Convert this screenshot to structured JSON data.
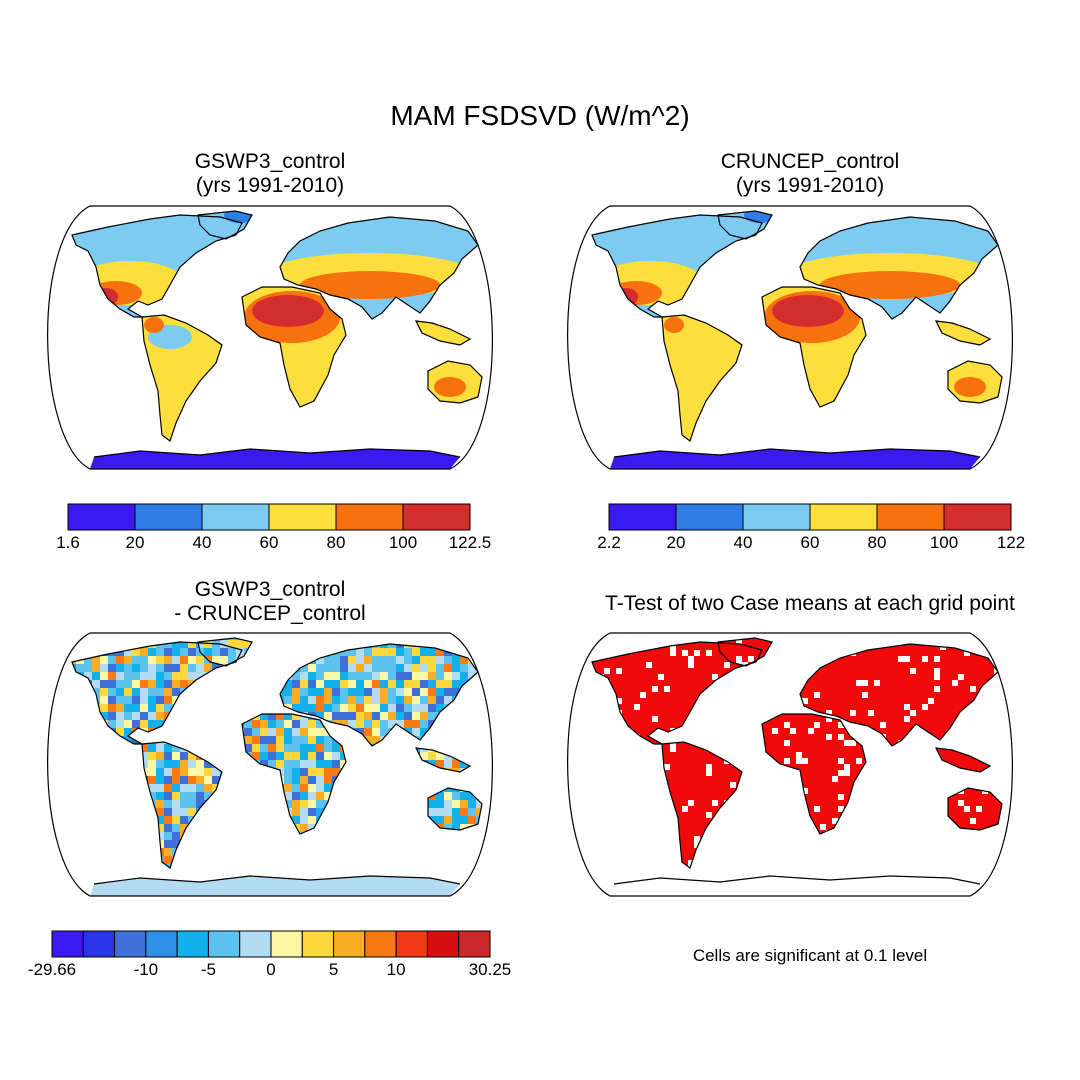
{
  "title": "MAM FSDSVD (W/m^2)",
  "panels": {
    "gswp3": {
      "title_line1": "GSWP3_control",
      "title_line2": "(yrs 1991-2010)"
    },
    "cruncep": {
      "title_line1": "CRUNCEP_control",
      "title_line2": "(yrs 1991-2010)"
    },
    "difference": {
      "title_line1": "GSWP3_control",
      "title_line2": "- CRUNCEP_control"
    },
    "ttest": {
      "title_line1": "T-Test of two Case means at each grid point",
      "note": "Cells are significant at 0.1 level"
    }
  },
  "colorbars": {
    "gswp3": {
      "colors": [
        "#3b1af0",
        "#2e7ee6",
        "#7ecbf2",
        "#fcdf3c",
        "#f7710f",
        "#d32d2d"
      ],
      "labels": [
        "1.6",
        "20",
        "40",
        "60",
        "80",
        "100",
        "122.5"
      ]
    },
    "cruncep": {
      "colors": [
        "#3b1af0",
        "#2e7ee6",
        "#7ecbf2",
        "#fcdf3c",
        "#f7710f",
        "#d32d2d"
      ],
      "labels": [
        "2.2",
        "20",
        "40",
        "60",
        "80",
        "100",
        "122"
      ]
    },
    "difference": {
      "colors": [
        "#3b1af0",
        "#2a35e8",
        "#3f6fd8",
        "#2e8fe6",
        "#13b0ee",
        "#5cc3ee",
        "#b3dcf3",
        "#fdf7a6",
        "#fcd83a",
        "#f9ad22",
        "#f97a12",
        "#f13a15",
        "#d80f0f",
        "#cc2a2a"
      ],
      "labels": [
        "-29.66",
        "-10",
        "-5",
        "0",
        "5",
        "10",
        "30.25"
      ],
      "label_positions": [
        0,
        3,
        5,
        7,
        9,
        11,
        14
      ]
    }
  },
  "maps": {
    "colors": {
      "cold": "#3b1af0",
      "cool": "#2e7ee6",
      "light": "#7ecbf2",
      "yellow": "#fcdf3c",
      "orange": "#f7710f",
      "red": "#d32d2d",
      "sig": "#f20a0a",
      "antarctic_diff": "#b3dcf3"
    }
  }
}
